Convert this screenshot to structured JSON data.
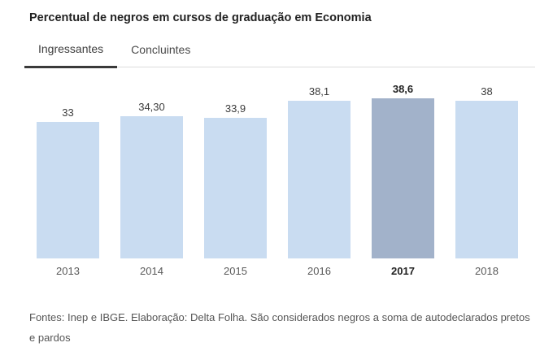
{
  "page": {
    "title": "Percentual de negros em cursos de graduação em Economia",
    "footer": "Fontes: Inep e IBGE. Elaboração: Delta Folha. São considerados negros a soma de autodeclarados pretos e pardos"
  },
  "tabs": {
    "items": [
      {
        "label": "Ingressantes",
        "active": true
      },
      {
        "label": "Concluintes",
        "active": false
      }
    ]
  },
  "colors": {
    "bar": "#c9dcf1",
    "bar_highlight": "#a2b2ca",
    "tab_underline": "#3a3a3a",
    "divider": "#dcdcdc"
  },
  "chart_data": {
    "type": "bar",
    "title": "Percentual de negros em cursos de graduação em Economia",
    "categories": [
      "2013",
      "2014",
      "2015",
      "2016",
      "2017",
      "2018"
    ],
    "values": [
      33,
      34.3,
      33.9,
      38.1,
      38.6,
      38
    ],
    "value_labels": [
      "33",
      "34,30",
      "33,9",
      "38,1",
      "38,6",
      "38"
    ],
    "highlight_category": "2017",
    "active_series": "Ingressantes",
    "xlabel": "",
    "ylabel": "",
    "ylim": [
      0,
      38.6
    ],
    "grid": false,
    "legend": false,
    "unit": "percent"
  }
}
